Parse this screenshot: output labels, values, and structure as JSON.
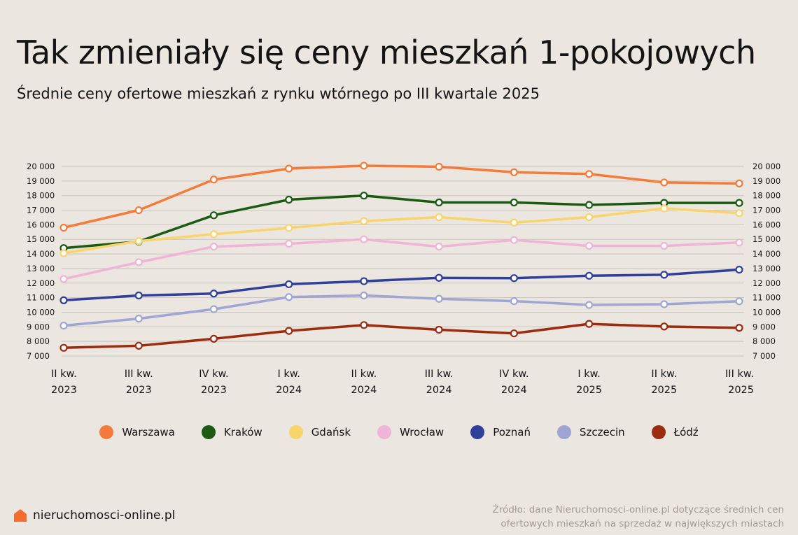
{
  "title": "Tak zmieniały się ceny mieszkań 1-pokojowych",
  "subtitle": "Średnie ceny ofertowe mieszkań z rynku wtórnego po III kwartale 2025",
  "brand": {
    "name": "nieruchomosci-online.pl",
    "icon": "house-icon",
    "color": "#f26e2e"
  },
  "source": {
    "line1": "Źródło: dane Nieruchomosci-online.pl dotyczące średnich cen",
    "line2": "ofertowych mieszkań na sprzedaż w największych miastach"
  },
  "chart_data": {
    "type": "line",
    "ylim": [
      7000,
      20000
    ],
    "yticks": [
      {
        "value": 20000,
        "label": "20 000"
      },
      {
        "value": 19000,
        "label": "19 000"
      },
      {
        "value": 18000,
        "label": "18 000"
      },
      {
        "value": 17000,
        "label": "17 000"
      },
      {
        "value": 16000,
        "label": "16 000"
      },
      {
        "value": 15000,
        "label": "15 000"
      },
      {
        "value": 14000,
        "label": "14 000"
      },
      {
        "value": 13000,
        "label": "13 000"
      },
      {
        "value": 12000,
        "label": "12 000"
      },
      {
        "value": 11000,
        "label": "11 000"
      },
      {
        "value": 10000,
        "label": "10 000"
      },
      {
        "value": 9000,
        "label": "9 000"
      },
      {
        "value": 8000,
        "label": "8 000"
      },
      {
        "value": 7000,
        "label": "7 000"
      }
    ],
    "categories": [
      {
        "q": "II kw.",
        "y": "2023"
      },
      {
        "q": "III kw.",
        "y": "2023"
      },
      {
        "q": "IV kw.",
        "y": "2023"
      },
      {
        "q": "I kw.",
        "y": "2024"
      },
      {
        "q": "II kw.",
        "y": "2024"
      },
      {
        "q": "III kw.",
        "y": "2024"
      },
      {
        "q": "IV kw.",
        "y": "2024"
      },
      {
        "q": "I kw.",
        "y": "2025"
      },
      {
        "q": "II kw.",
        "y": "2025"
      },
      {
        "q": "III kw.",
        "y": "2025"
      }
    ],
    "grid": true,
    "legend_position": "bottom",
    "series": [
      {
        "name": "Warszawa",
        "color": "#f47b3a",
        "values": [
          15800,
          17000,
          19100,
          19850,
          20050,
          19980,
          19600,
          19480,
          18900,
          18830
        ]
      },
      {
        "name": "Kraków",
        "color": "#1a5a12",
        "values": [
          14400,
          14850,
          16650,
          17720,
          18000,
          17530,
          17530,
          17360,
          17500,
          17500
        ]
      },
      {
        "name": "Gdańsk",
        "color": "#f8d46a",
        "values": [
          14050,
          14880,
          15350,
          15780,
          16250,
          16520,
          16150,
          16520,
          17120,
          16800
        ]
      },
      {
        "name": "Wrocław",
        "color": "#f0b4d6",
        "values": [
          12280,
          13430,
          14500,
          14700,
          15000,
          14500,
          14950,
          14550,
          14550,
          14780
        ]
      },
      {
        "name": "Poznań",
        "color": "#2f3f9a",
        "values": [
          10820,
          11150,
          11280,
          11920,
          12130,
          12360,
          12340,
          12500,
          12570,
          12920
        ]
      },
      {
        "name": "Szczecin",
        "color": "#a0a6d4",
        "values": [
          9080,
          9560,
          10210,
          11040,
          11150,
          10920,
          10760,
          10500,
          10550,
          10750
        ]
      },
      {
        "name": "Łódź",
        "color": "#9b2c10",
        "values": [
          7560,
          7700,
          8180,
          8720,
          9120,
          8800,
          8550,
          9200,
          9020,
          8930
        ]
      }
    ]
  }
}
